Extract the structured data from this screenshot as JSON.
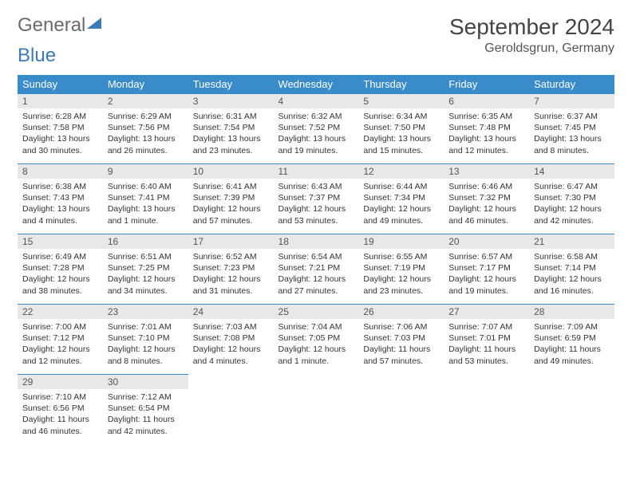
{
  "logo": {
    "part1": "General",
    "part2": "Blue"
  },
  "header": {
    "month_title": "September 2024",
    "location": "Geroldsgrun, Germany"
  },
  "styling": {
    "header_bg": "#3a8bc9",
    "header_text": "#ffffff",
    "daynum_bg": "#e8e8e8",
    "daynum_border": "#3a8bc9",
    "body_text": "#333333",
    "month_title_fontsize": 28,
    "location_fontsize": 16,
    "cell_fontsize": 10.5
  },
  "weekdays": [
    "Sunday",
    "Monday",
    "Tuesday",
    "Wednesday",
    "Thursday",
    "Friday",
    "Saturday"
  ],
  "weeks": [
    [
      {
        "n": "1",
        "sunrise": "Sunrise: 6:28 AM",
        "sunset": "Sunset: 7:58 PM",
        "daylight": "Daylight: 13 hours and 30 minutes."
      },
      {
        "n": "2",
        "sunrise": "Sunrise: 6:29 AM",
        "sunset": "Sunset: 7:56 PM",
        "daylight": "Daylight: 13 hours and 26 minutes."
      },
      {
        "n": "3",
        "sunrise": "Sunrise: 6:31 AM",
        "sunset": "Sunset: 7:54 PM",
        "daylight": "Daylight: 13 hours and 23 minutes."
      },
      {
        "n": "4",
        "sunrise": "Sunrise: 6:32 AM",
        "sunset": "Sunset: 7:52 PM",
        "daylight": "Daylight: 13 hours and 19 minutes."
      },
      {
        "n": "5",
        "sunrise": "Sunrise: 6:34 AM",
        "sunset": "Sunset: 7:50 PM",
        "daylight": "Daylight: 13 hours and 15 minutes."
      },
      {
        "n": "6",
        "sunrise": "Sunrise: 6:35 AM",
        "sunset": "Sunset: 7:48 PM",
        "daylight": "Daylight: 13 hours and 12 minutes."
      },
      {
        "n": "7",
        "sunrise": "Sunrise: 6:37 AM",
        "sunset": "Sunset: 7:45 PM",
        "daylight": "Daylight: 13 hours and 8 minutes."
      }
    ],
    [
      {
        "n": "8",
        "sunrise": "Sunrise: 6:38 AM",
        "sunset": "Sunset: 7:43 PM",
        "daylight": "Daylight: 13 hours and 4 minutes."
      },
      {
        "n": "9",
        "sunrise": "Sunrise: 6:40 AM",
        "sunset": "Sunset: 7:41 PM",
        "daylight": "Daylight: 13 hours and 1 minute."
      },
      {
        "n": "10",
        "sunrise": "Sunrise: 6:41 AM",
        "sunset": "Sunset: 7:39 PM",
        "daylight": "Daylight: 12 hours and 57 minutes."
      },
      {
        "n": "11",
        "sunrise": "Sunrise: 6:43 AM",
        "sunset": "Sunset: 7:37 PM",
        "daylight": "Daylight: 12 hours and 53 minutes."
      },
      {
        "n": "12",
        "sunrise": "Sunrise: 6:44 AM",
        "sunset": "Sunset: 7:34 PM",
        "daylight": "Daylight: 12 hours and 49 minutes."
      },
      {
        "n": "13",
        "sunrise": "Sunrise: 6:46 AM",
        "sunset": "Sunset: 7:32 PM",
        "daylight": "Daylight: 12 hours and 46 minutes."
      },
      {
        "n": "14",
        "sunrise": "Sunrise: 6:47 AM",
        "sunset": "Sunset: 7:30 PM",
        "daylight": "Daylight: 12 hours and 42 minutes."
      }
    ],
    [
      {
        "n": "15",
        "sunrise": "Sunrise: 6:49 AM",
        "sunset": "Sunset: 7:28 PM",
        "daylight": "Daylight: 12 hours and 38 minutes."
      },
      {
        "n": "16",
        "sunrise": "Sunrise: 6:51 AM",
        "sunset": "Sunset: 7:25 PM",
        "daylight": "Daylight: 12 hours and 34 minutes."
      },
      {
        "n": "17",
        "sunrise": "Sunrise: 6:52 AM",
        "sunset": "Sunset: 7:23 PM",
        "daylight": "Daylight: 12 hours and 31 minutes."
      },
      {
        "n": "18",
        "sunrise": "Sunrise: 6:54 AM",
        "sunset": "Sunset: 7:21 PM",
        "daylight": "Daylight: 12 hours and 27 minutes."
      },
      {
        "n": "19",
        "sunrise": "Sunrise: 6:55 AM",
        "sunset": "Sunset: 7:19 PM",
        "daylight": "Daylight: 12 hours and 23 minutes."
      },
      {
        "n": "20",
        "sunrise": "Sunrise: 6:57 AM",
        "sunset": "Sunset: 7:17 PM",
        "daylight": "Daylight: 12 hours and 19 minutes."
      },
      {
        "n": "21",
        "sunrise": "Sunrise: 6:58 AM",
        "sunset": "Sunset: 7:14 PM",
        "daylight": "Daylight: 12 hours and 16 minutes."
      }
    ],
    [
      {
        "n": "22",
        "sunrise": "Sunrise: 7:00 AM",
        "sunset": "Sunset: 7:12 PM",
        "daylight": "Daylight: 12 hours and 12 minutes."
      },
      {
        "n": "23",
        "sunrise": "Sunrise: 7:01 AM",
        "sunset": "Sunset: 7:10 PM",
        "daylight": "Daylight: 12 hours and 8 minutes."
      },
      {
        "n": "24",
        "sunrise": "Sunrise: 7:03 AM",
        "sunset": "Sunset: 7:08 PM",
        "daylight": "Daylight: 12 hours and 4 minutes."
      },
      {
        "n": "25",
        "sunrise": "Sunrise: 7:04 AM",
        "sunset": "Sunset: 7:05 PM",
        "daylight": "Daylight: 12 hours and 1 minute."
      },
      {
        "n": "26",
        "sunrise": "Sunrise: 7:06 AM",
        "sunset": "Sunset: 7:03 PM",
        "daylight": "Daylight: 11 hours and 57 minutes."
      },
      {
        "n": "27",
        "sunrise": "Sunrise: 7:07 AM",
        "sunset": "Sunset: 7:01 PM",
        "daylight": "Daylight: 11 hours and 53 minutes."
      },
      {
        "n": "28",
        "sunrise": "Sunrise: 7:09 AM",
        "sunset": "Sunset: 6:59 PM",
        "daylight": "Daylight: 11 hours and 49 minutes."
      }
    ],
    [
      {
        "n": "29",
        "sunrise": "Sunrise: 7:10 AM",
        "sunset": "Sunset: 6:56 PM",
        "daylight": "Daylight: 11 hours and 46 minutes."
      },
      {
        "n": "30",
        "sunrise": "Sunrise: 7:12 AM",
        "sunset": "Sunset: 6:54 PM",
        "daylight": "Daylight: 11 hours and 42 minutes."
      },
      null,
      null,
      null,
      null,
      null
    ]
  ]
}
